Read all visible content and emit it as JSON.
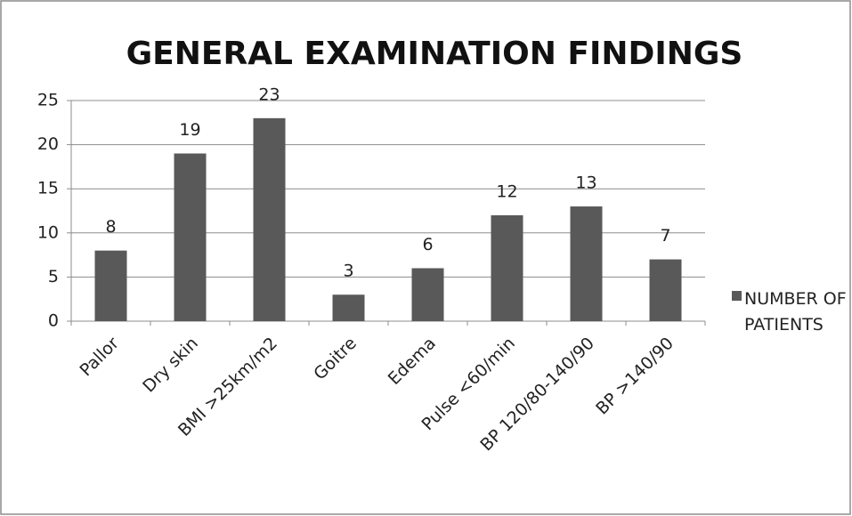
{
  "chart_data": {
    "type": "bar",
    "title": "GENERAL EXAMINATION FINDINGS",
    "categories": [
      "Pallor",
      "Dry skin",
      "BMI >25km/m2",
      "Goitre",
      "Edema",
      "Pulse <60/min",
      "BP 120/80-140/90",
      "BP >140/90"
    ],
    "series": [
      {
        "name": "NUMBER OF PATIENTS",
        "color": "#595959",
        "values": [
          8,
          19,
          23,
          3,
          6,
          12,
          13,
          7
        ]
      }
    ],
    "ylim": [
      0,
      25
    ],
    "yticks": [
      0,
      5,
      10,
      15,
      20,
      25
    ],
    "grid": true,
    "legend": "right"
  }
}
